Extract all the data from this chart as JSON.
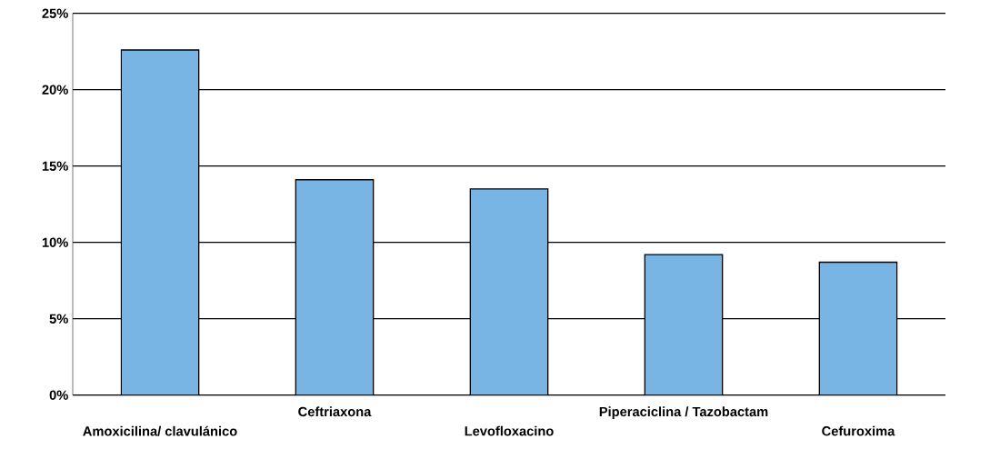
{
  "chart_data": {
    "type": "bar",
    "categories": [
      "Amoxicilina/ clavulánico",
      "Ceftriaxona",
      "Levofloxacino",
      "Piperaciclina / Tazobactam",
      "Cefuroxima"
    ],
    "values": [
      22.6,
      14.1,
      13.5,
      9.2,
      8.7
    ],
    "color": "#78b4e4",
    "ylim": [
      0,
      25
    ],
    "yticks": [
      {
        "value": 0,
        "label": "0%"
      },
      {
        "value": 5,
        "label": "5%"
      },
      {
        "value": 10,
        "label": "10%"
      },
      {
        "value": 15,
        "label": "15%"
      },
      {
        "value": 20,
        "label": "20%"
      },
      {
        "value": 25,
        "label": "25%"
      }
    ],
    "grid": "y"
  }
}
